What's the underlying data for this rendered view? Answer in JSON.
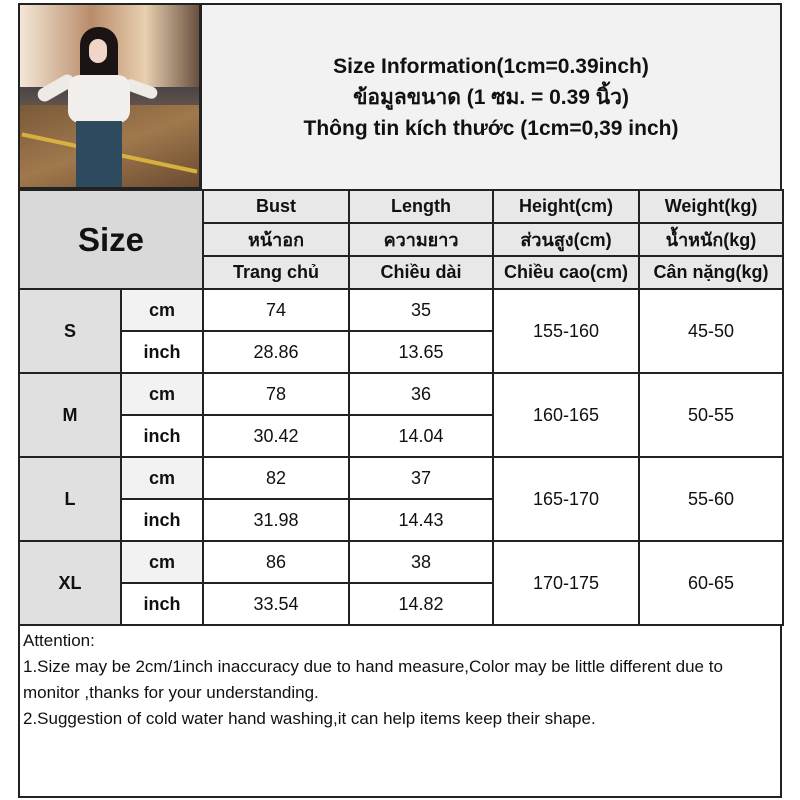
{
  "title": {
    "line1": "Size Information(1cm=0.39inch)",
    "line2": "ข้อมูลขนาด (1 ซม. = 0.39 นิ้ว)",
    "line3": "Thông tin kích thước (1cm=0,39 inch)"
  },
  "table": {
    "size_label": "Size",
    "headers": [
      [
        "Bust",
        "Length",
        "Height(cm)",
        "Weight(kg)"
      ],
      [
        "หน้าอก",
        "ความยาว",
        "ส่วนสูง(cm)",
        "น้ำหนัก(kg)"
      ],
      [
        "Trang chủ",
        "Chiều dài",
        "Chiều cao(cm)",
        "Cân nặng(kg)"
      ]
    ],
    "rows": [
      {
        "size": "S",
        "cm_label": "cm",
        "inch_label": "inch",
        "bust_cm": "74",
        "length_cm": "35",
        "bust_in": "28.86",
        "length_in": "13.65",
        "height": "155-160",
        "weight": "45-50"
      },
      {
        "size": "M",
        "cm_label": "cm",
        "inch_label": "inch",
        "bust_cm": "78",
        "length_cm": "36",
        "bust_in": "30.42",
        "length_in": "14.04",
        "height": "160-165",
        "weight": "50-55"
      },
      {
        "size": "L",
        "cm_label": "cm",
        "inch_label": "inch",
        "bust_cm": "82",
        "length_cm": "37",
        "bust_in": "31.98",
        "length_in": "14.43",
        "height": "165-170",
        "weight": "55-60"
      },
      {
        "size": "XL",
        "cm_label": "cm",
        "inch_label": "inch",
        "bust_cm": "86",
        "length_cm": "38",
        "bust_in": "33.54",
        "length_in": "14.82",
        "height": "170-175",
        "weight": "60-65"
      }
    ]
  },
  "notes": {
    "heading": "Attention:",
    "items": [
      "1.Size may be 2cm/1inch inaccuracy due to hand measure,Color may be little different due to monitor ,thanks for your understanding.",
      "2.Suggestion of cold water hand washing,it can help items keep their shape."
    ]
  }
}
